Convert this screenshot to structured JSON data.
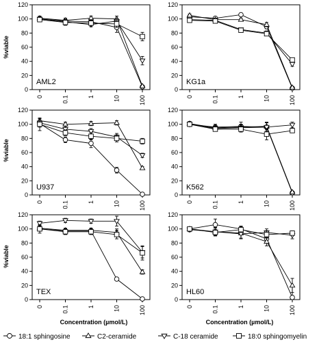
{
  "figure": {
    "y_axis_label": "%viable",
    "x_axis_label": "Concentration (µmol/L)"
  },
  "legend": [
    {
      "name": "18:1 sphingosine",
      "marker": "circle"
    },
    {
      "name": "C2-ceramide",
      "marker": "triangle-up"
    },
    {
      "name": "C-18 ceramide",
      "marker": "triangle-down"
    },
    {
      "name": "18:0 sphingomyelin",
      "marker": "square"
    }
  ],
  "chart_data": [
    {
      "type": "line",
      "panel_label": "AML2",
      "categories": [
        "0",
        "0.1",
        "1",
        "10",
        "100"
      ],
      "yticks": [
        0,
        20,
        40,
        60,
        80,
        100,
        120
      ],
      "ylim": [
        0,
        120
      ],
      "series": [
        {
          "name": "18:1 sphingosine",
          "marker": "circle",
          "values": [
            100,
            97,
            96,
            88,
            4
          ],
          "errors": [
            3,
            4,
            4,
            7,
            1
          ]
        },
        {
          "name": "C2-ceramide",
          "marker": "triangle-up",
          "values": [
            101,
            98,
            101,
            100,
            5
          ],
          "errors": [
            3,
            3,
            3,
            4,
            1
          ]
        },
        {
          "name": "C-18 ceramide",
          "marker": "triangle-down",
          "values": [
            100,
            96,
            92,
            97,
            41
          ],
          "errors": [
            3,
            3,
            3,
            4,
            6
          ]
        },
        {
          "name": "18:0 sphingomyelin",
          "marker": "square",
          "values": [
            99,
            95,
            94,
            93,
            75
          ],
          "errors": [
            3,
            4,
            5,
            5,
            6
          ]
        }
      ]
    },
    {
      "type": "line",
      "panel_label": "KG1a",
      "categories": [
        "0",
        "0.1",
        "1",
        "10",
        "100"
      ],
      "yticks": [
        0,
        20,
        40,
        60,
        80,
        100,
        120
      ],
      "ylim": [
        0,
        120
      ],
      "series": [
        {
          "name": "18:1 sphingosine",
          "marker": "circle",
          "values": [
            103,
            101,
            106,
            89,
            2
          ],
          "errors": [
            2,
            2,
            2,
            3,
            1
          ]
        },
        {
          "name": "C2-ceramide",
          "marker": "triangle-up",
          "values": [
            105,
            99,
            99,
            92,
            3
          ],
          "errors": [
            2,
            2,
            2,
            3,
            1
          ]
        },
        {
          "name": "C-18 ceramide",
          "marker": "triangle-down",
          "values": [
            99,
            98,
            85,
            80,
            36
          ],
          "errors": [
            2,
            2,
            2,
            3,
            3
          ]
        },
        {
          "name": "18:0 sphingomyelin",
          "marker": "square",
          "values": [
            98,
            97,
            84,
            79,
            42
          ],
          "errors": [
            2,
            2,
            2,
            3,
            3
          ]
        }
      ]
    },
    {
      "type": "line",
      "panel_label": "U937",
      "categories": [
        "0",
        "0.1",
        "1",
        "10",
        "100"
      ],
      "yticks": [
        0,
        20,
        40,
        60,
        80,
        100,
        120
      ],
      "ylim": [
        0,
        120
      ],
      "series": [
        {
          "name": "18:1 sphingosine",
          "marker": "circle",
          "values": [
            101,
            78,
            73,
            35,
            1
          ],
          "errors": [
            5,
            4,
            6,
            4,
            1
          ]
        },
        {
          "name": "C2-ceramide",
          "marker": "triangle-up",
          "values": [
            105,
            100,
            101,
            102,
            38
          ],
          "errors": [
            3,
            3,
            3,
            3,
            2
          ]
        },
        {
          "name": "C-18 ceramide",
          "marker": "triangle-down",
          "values": [
            102,
            93,
            90,
            82,
            56
          ],
          "errors": [
            4,
            4,
            4,
            5,
            3
          ]
        },
        {
          "name": "18:0 sphingomyelin",
          "marker": "square",
          "values": [
            100,
            88,
            83,
            80,
            76
          ],
          "errors": [
            9,
            4,
            5,
            5,
            4
          ]
        }
      ]
    },
    {
      "type": "line",
      "panel_label": "K562",
      "categories": [
        "0",
        "0.1",
        "1",
        "10",
        "100"
      ],
      "yticks": [
        0,
        20,
        40,
        60,
        80,
        100,
        120
      ],
      "ylim": [
        0,
        120
      ],
      "series": [
        {
          "name": "18:1 sphingosine",
          "marker": "circle",
          "values": [
            100,
            96,
            97,
            96,
            3
          ],
          "errors": [
            3,
            4,
            6,
            7,
            1
          ]
        },
        {
          "name": "C2-ceramide",
          "marker": "triangle-up",
          "values": [
            101,
            95,
            96,
            97,
            4
          ],
          "errors": [
            3,
            3,
            4,
            5,
            1
          ]
        },
        {
          "name": "C-18 ceramide",
          "marker": "triangle-down",
          "values": [
            100,
            94,
            95,
            96,
            99
          ],
          "errors": [
            3,
            3,
            4,
            6,
            4
          ]
        },
        {
          "name": "18:0 sphingomyelin",
          "marker": "square",
          "values": [
            100,
            93,
            93,
            86,
            91
          ],
          "errors": [
            3,
            3,
            4,
            8,
            3
          ]
        }
      ]
    },
    {
      "type": "line",
      "panel_label": "TEX",
      "categories": [
        "0",
        "0.1",
        "1",
        "10",
        "100"
      ],
      "yticks": [
        0,
        20,
        40,
        60,
        80,
        100,
        120
      ],
      "ylim": [
        0,
        120
      ],
      "series": [
        {
          "name": "18:1 sphingosine",
          "marker": "circle",
          "values": [
            100,
            97,
            97,
            29,
            1
          ],
          "errors": [
            3,
            3,
            3,
            2,
            1
          ]
        },
        {
          "name": "C2-ceramide",
          "marker": "triangle-up",
          "values": [
            101,
            98,
            98,
            95,
            39
          ],
          "errors": [
            3,
            3,
            3,
            5,
            3
          ]
        },
        {
          "name": "C-18 ceramide",
          "marker": "triangle-down",
          "values": [
            108,
            112,
            111,
            111,
            67
          ],
          "errors": [
            3,
            3,
            3,
            7,
            8
          ]
        },
        {
          "name": "18:0 sphingomyelin",
          "marker": "square",
          "values": [
            100,
            96,
            96,
            92,
            66
          ],
          "errors": [
            6,
            4,
            4,
            6,
            10
          ]
        }
      ]
    },
    {
      "type": "line",
      "panel_label": "HL60",
      "categories": [
        "0",
        "0.1",
        "1",
        "10",
        "100"
      ],
      "yticks": [
        0,
        20,
        40,
        60,
        80,
        100,
        120
      ],
      "ylim": [
        0,
        120
      ],
      "series": [
        {
          "name": "18:1 sphingosine",
          "marker": "circle",
          "values": [
            100,
            106,
            100,
            86,
            3
          ],
          "errors": [
            3,
            8,
            4,
            5,
            15
          ]
        },
        {
          "name": "C2-ceramide",
          "marker": "triangle-up",
          "values": [
            100,
            96,
            94,
            82,
            20
          ],
          "errors": [
            3,
            6,
            7,
            6,
            10
          ]
        },
        {
          "name": "C-18 ceramide",
          "marker": "triangle-down",
          "values": [
            99,
            96,
            93,
            95,
            91
          ],
          "errors": [
            3,
            5,
            7,
            5,
            5
          ]
        },
        {
          "name": "18:0 sphingomyelin",
          "marker": "square",
          "values": [
            100,
            95,
            99,
            92,
            94
          ],
          "errors": [
            3,
            4,
            4,
            5,
            3
          ]
        }
      ]
    }
  ]
}
